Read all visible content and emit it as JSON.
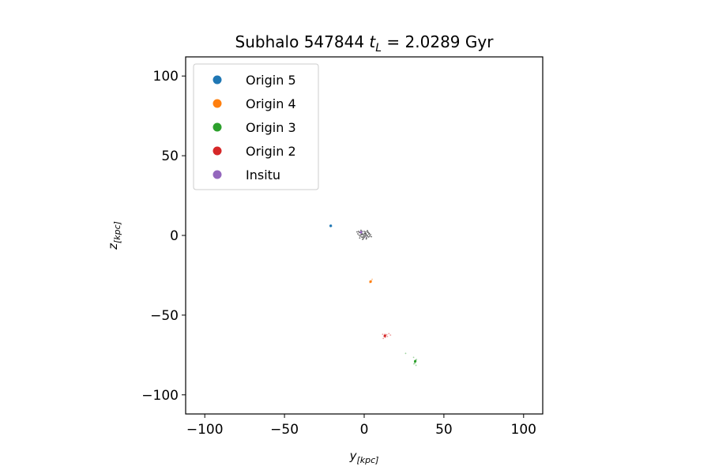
{
  "chart_data": {
    "type": "scatter",
    "title": {
      "prefix": "Subhalo 547844 ",
      "symbol": "t",
      "symbol_sub": "L",
      "equals": " =  ",
      "value": "2.0289 Gyr"
    },
    "xlabel": {
      "symbol": "y",
      "sub": "[kpc]"
    },
    "ylabel": {
      "symbol": "z",
      "sub": "[kpc]"
    },
    "xlim": [
      -112,
      112
    ],
    "ylim": [
      -112,
      112
    ],
    "x_ticks": [
      {
        "value": -100,
        "label": "−100"
      },
      {
        "value": -50,
        "label": "−50"
      },
      {
        "value": 0,
        "label": "0"
      },
      {
        "value": 50,
        "label": "50"
      },
      {
        "value": 100,
        "label": "100"
      }
    ],
    "y_ticks": [
      {
        "value": 100,
        "label": "100"
      },
      {
        "value": 50,
        "label": "50"
      },
      {
        "value": 0,
        "label": "0"
      },
      {
        "value": -50,
        "label": "−50"
      },
      {
        "value": -100,
        "label": "−100"
      }
    ],
    "grid": false,
    "legend_position": "top-left",
    "series": [
      {
        "name": "Origin 5",
        "color": "#1f77b4",
        "points": [
          [
            -21,
            6
          ],
          [
            -20.5,
            5.8
          ],
          [
            -21.4,
            6.2
          ],
          [
            -20.8,
            6.5
          ],
          [
            -21.2,
            5.5
          ]
        ]
      },
      {
        "name": "Origin 4",
        "color": "#ff7f0e",
        "points": [
          [
            4,
            -29
          ],
          [
            4.6,
            -28.4
          ],
          [
            3.6,
            -29.6
          ],
          [
            5,
            -27.5
          ]
        ]
      },
      {
        "name": "Origin 3",
        "color": "#2ca02c",
        "points": [
          [
            32,
            -79
          ],
          [
            31.6,
            -79.5
          ],
          [
            32.4,
            -78.6
          ],
          [
            31.8,
            -80.2
          ],
          [
            32.2,
            -78.2
          ],
          [
            32.5,
            -81.5
          ],
          [
            31.2,
            -80.6
          ],
          [
            26,
            -74
          ],
          [
            31,
            -76.5
          ],
          [
            32.8,
            -77.8
          ]
        ]
      },
      {
        "name": "Origin 2",
        "color": "#d62728",
        "points": [
          [
            13,
            -63
          ],
          [
            13.5,
            -62.5
          ],
          [
            12.5,
            -63.4
          ],
          [
            13.2,
            -64
          ],
          [
            14.2,
            -62.2
          ],
          [
            15.5,
            -61.6
          ],
          [
            16.5,
            -62.5
          ],
          [
            12,
            -64.6
          ],
          [
            14.6,
            -63.4
          ],
          [
            11.6,
            -62
          ],
          [
            13,
            -62
          ]
        ]
      },
      {
        "name": "Insitu",
        "color": "#9467bd",
        "points": [
          [
            -2,
            2
          ],
          [
            1,
            -1
          ]
        ]
      }
    ],
    "background_points": {
      "color": "#000000",
      "points": [
        [
          0,
          0
        ],
        [
          1,
          0.5
        ],
        [
          -1,
          1
        ],
        [
          2,
          -0.5
        ],
        [
          -2,
          0.3
        ],
        [
          0.5,
          1.5
        ],
        [
          -1.5,
          -1
        ],
        [
          3,
          0.8
        ],
        [
          -3,
          1.8
        ],
        [
          1.5,
          -1.5
        ],
        [
          0,
          2.5
        ],
        [
          -0.5,
          -2
        ],
        [
          2.5,
          1.8
        ],
        [
          -2.5,
          -0.5
        ],
        [
          3.5,
          -0.4
        ],
        [
          -3.5,
          2.5
        ],
        [
          1,
          2.2
        ],
        [
          -1,
          -2.5
        ],
        [
          4,
          0.5
        ],
        [
          -4,
          1
        ],
        [
          2,
          3
        ],
        [
          -2,
          3.2
        ],
        [
          0.8,
          -0.4
        ],
        [
          -0.8,
          0.4
        ],
        [
          1.8,
          0.2
        ],
        [
          -1.8,
          0.8
        ],
        [
          2.8,
          -1
        ],
        [
          -2.8,
          -1.6
        ],
        [
          0.2,
          1
        ],
        [
          -0.2,
          -0.8
        ],
        [
          3.2,
          1.3
        ],
        [
          -3.2,
          0.2
        ],
        [
          1.3,
          -2.2
        ],
        [
          -1.3,
          2.5
        ],
        [
          4.5,
          -0.8
        ],
        [
          -4.5,
          2.2
        ],
        [
          0,
          -1.2
        ],
        [
          1.1,
          1.1
        ],
        [
          -1.1,
          -1.1
        ],
        [
          2.2,
          2.2
        ]
      ]
    },
    "legend": {
      "entries": [
        "Origin 5",
        "Origin 4",
        "Origin 3",
        "Origin 2",
        "Insitu"
      ],
      "colors": [
        "#1f77b4",
        "#ff7f0e",
        "#2ca02c",
        "#d62728",
        "#9467bd"
      ]
    }
  }
}
